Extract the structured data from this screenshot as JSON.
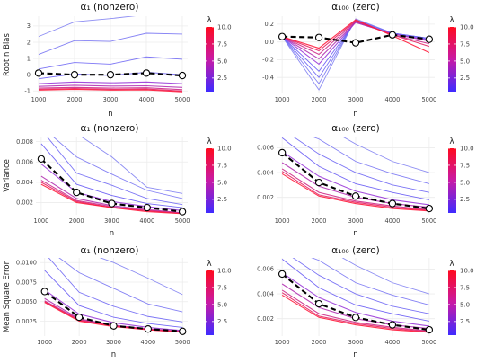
{
  "lambda_title": "λ",
  "legend_ticks": [
    "10.0",
    "7.5",
    "5.0",
    "2.5"
  ],
  "colors": {
    "low": "#3f2bff",
    "high": "#ff0a1e",
    "thin_line": "#7a7cf0",
    "mean_line": "#000000"
  },
  "chart_data": [
    {
      "type": "line",
      "title": "α₁ (nonzero)",
      "xlabel": "n",
      "ylabel": "Root n Bias",
      "x": [
        1000,
        2000,
        3000,
        4000,
        5000
      ],
      "ylim": [
        -1.15,
        3.6
      ],
      "y_ticks": [
        -1,
        0,
        1,
        2,
        3
      ],
      "y_tick_labels": [
        "-1",
        "0",
        "1",
        "2",
        "3"
      ],
      "legend": "λ colour scale",
      "thin_series": [
        [
          2.35,
          3.25,
          3.45,
          3.7,
          3.8
        ],
        [
          1.25,
          2.1,
          2.05,
          2.55,
          2.5
        ],
        [
          0.35,
          0.75,
          0.65,
          1.1,
          0.95
        ],
        [
          -0.25,
          0.05,
          -0.05,
          0.15,
          0.0
        ],
        [
          -0.55,
          -0.45,
          -0.5,
          -0.45,
          -0.55
        ],
        [
          -0.72,
          -0.65,
          -0.7,
          -0.68,
          -0.78
        ],
        [
          -0.82,
          -0.78,
          -0.82,
          -0.8,
          -0.92
        ],
        [
          -0.9,
          -0.85,
          -0.9,
          -0.88,
          -1.0
        ],
        [
          -0.95,
          -0.9,
          -0.95,
          -0.93,
          -1.05
        ]
      ],
      "mean_series": [
        0.1,
        0.0,
        0.0,
        0.1,
        -0.05
      ]
    },
    {
      "type": "line",
      "title": "α₁₀₀ (zero)",
      "xlabel": "n",
      "ylabel": "",
      "x": [
        1000,
        2000,
        3000,
        4000,
        5000
      ],
      "ylim": [
        -0.58,
        0.29
      ],
      "y_ticks": [
        -0.4,
        -0.2,
        0.0,
        0.2
      ],
      "y_tick_labels": [
        "-0.4",
        "-0.2",
        "0.0",
        "0.2"
      ],
      "legend": "λ colour scale",
      "thin_series": [
        [
          0.06,
          -0.54,
          0.26,
          0.1,
          0.04
        ],
        [
          0.06,
          -0.47,
          0.25,
          0.1,
          0.04
        ],
        [
          0.06,
          -0.4,
          0.24,
          0.1,
          0.04
        ],
        [
          0.06,
          -0.33,
          0.23,
          0.09,
          0.03
        ],
        [
          0.06,
          -0.25,
          0.22,
          0.09,
          0.02
        ],
        [
          0.06,
          -0.19,
          0.22,
          0.09,
          0.01
        ],
        [
          0.06,
          -0.14,
          0.23,
          0.08,
          -0.02
        ],
        [
          0.06,
          -0.1,
          0.24,
          0.08,
          -0.05
        ],
        [
          0.06,
          -0.07,
          0.25,
          0.07,
          -0.12
        ]
      ],
      "mean_series": [
        0.06,
        0.05,
        -0.01,
        0.08,
        0.03
      ]
    },
    {
      "type": "line",
      "title": "α₁ (nonzero)",
      "xlabel": "n",
      "ylabel": "Variance",
      "x": [
        1000,
        2000,
        3000,
        4000,
        5000
      ],
      "ylim": [
        0.0008,
        0.0085
      ],
      "y_ticks": [
        0.002,
        0.004,
        0.006,
        0.008
      ],
      "y_tick_labels": [
        "0.002",
        "0.004",
        "0.006",
        "0.008"
      ],
      "legend": "λ colour scale",
      "thin_series": [
        [
          0.0095,
          0.0088,
          0.0065,
          0.0035,
          0.0029
        ],
        [
          0.0095,
          0.0065,
          0.0048,
          0.0032,
          0.0024
        ],
        [
          0.0092,
          0.0049,
          0.0037,
          0.0024,
          0.0018
        ],
        [
          0.0078,
          0.0038,
          0.0027,
          0.0019,
          0.0015
        ],
        [
          0.0058,
          0.003,
          0.0021,
          0.0016,
          0.0012
        ],
        [
          0.0046,
          0.0024,
          0.0017,
          0.0013,
          0.001
        ],
        [
          0.0042,
          0.0022,
          0.0016,
          0.0012,
          0.00095
        ],
        [
          0.004,
          0.0021,
          0.0015,
          0.0012,
          0.00092
        ],
        [
          0.0038,
          0.002,
          0.0015,
          0.0011,
          0.0009
        ]
      ],
      "mean_series": [
        0.0063,
        0.003,
        0.0019,
        0.0015,
        0.0011
      ]
    },
    {
      "type": "line",
      "title": "α₁₀₀ (zero)",
      "xlabel": "n",
      "ylabel": "",
      "x": [
        1000,
        2000,
        3000,
        4000,
        5000
      ],
      "ylim": [
        0.0006,
        0.0069
      ],
      "y_ticks": [
        0.002,
        0.004,
        0.006
      ],
      "y_tick_labels": [
        "0.002",
        "0.004",
        "0.006"
      ],
      "legend": "λ colour scale",
      "thin_series": [
        [
          0.008,
          0.008,
          0.0063,
          0.0049,
          0.004
        ],
        [
          0.0078,
          0.0067,
          0.0049,
          0.0039,
          0.0031
        ],
        [
          0.0075,
          0.0055,
          0.004,
          0.003,
          0.0024
        ],
        [
          0.0068,
          0.0045,
          0.0031,
          0.0024,
          0.0018
        ],
        [
          0.0057,
          0.0037,
          0.0025,
          0.0018,
          0.0014
        ],
        [
          0.0048,
          0.0029,
          0.002,
          0.0015,
          0.0012
        ],
        [
          0.0043,
          0.0024,
          0.0017,
          0.0013,
          0.001
        ],
        [
          0.0041,
          0.0022,
          0.0016,
          0.0012,
          0.00095
        ],
        [
          0.0039,
          0.0021,
          0.0015,
          0.0011,
          0.0009
        ]
      ],
      "mean_series": [
        0.0056,
        0.0032,
        0.0021,
        0.0015,
        0.0011
      ]
    },
    {
      "type": "line",
      "title": "α₁ (nonzero)",
      "xlabel": "n",
      "ylabel": "Mean Square Error",
      "x": [
        1000,
        2000,
        3000,
        4000,
        5000
      ],
      "ylim": [
        0.0006,
        0.0106
      ],
      "y_ticks": [
        0.0025,
        0.005,
        0.0075,
        0.01
      ],
      "y_tick_labels": [
        "0.0025",
        "0.0050",
        "0.0075",
        "0.0100"
      ],
      "legend": "λ colour scale",
      "thin_series": [
        [
          0.012,
          0.0116,
          0.01,
          0.008,
          0.0059
        ],
        [
          0.012,
          0.0087,
          0.0067,
          0.0047,
          0.0037
        ],
        [
          0.0112,
          0.0062,
          0.0044,
          0.0031,
          0.0024
        ],
        [
          0.009,
          0.0045,
          0.003,
          0.0022,
          0.0017
        ],
        [
          0.0065,
          0.0034,
          0.0023,
          0.0017,
          0.0013
        ],
        [
          0.0054,
          0.0028,
          0.002,
          0.0015,
          0.0012
        ],
        [
          0.0051,
          0.0027,
          0.0019,
          0.0015,
          0.0012
        ],
        [
          0.005,
          0.0026,
          0.0019,
          0.0014,
          0.0011
        ],
        [
          0.0049,
          0.0025,
          0.0018,
          0.0014,
          0.0011
        ]
      ],
      "mean_series": [
        0.0063,
        0.003,
        0.0019,
        0.0015,
        0.0012
      ]
    },
    {
      "type": "line",
      "title": "α₁₀₀ (zero)",
      "xlabel": "n",
      "ylabel": "",
      "x": [
        1000,
        2000,
        3000,
        4000,
        5000
      ],
      "ylim": [
        0.0006,
        0.0069
      ],
      "y_ticks": [
        0.002,
        0.004,
        0.006
      ],
      "y_tick_labels": [
        "0.002",
        "0.004",
        "0.006"
      ],
      "legend": "λ colour scale",
      "thin_series": [
        [
          0.008,
          0.008,
          0.0063,
          0.0049,
          0.004
        ],
        [
          0.0078,
          0.0067,
          0.0049,
          0.0039,
          0.0031
        ],
        [
          0.0075,
          0.0055,
          0.004,
          0.003,
          0.0024
        ],
        [
          0.0068,
          0.0045,
          0.0031,
          0.0024,
          0.0018
        ],
        [
          0.0057,
          0.0037,
          0.0025,
          0.0018,
          0.0014
        ],
        [
          0.0048,
          0.0029,
          0.002,
          0.0015,
          0.0012
        ],
        [
          0.0043,
          0.0024,
          0.0017,
          0.0013,
          0.001
        ],
        [
          0.0041,
          0.0022,
          0.0016,
          0.0012,
          0.00095
        ],
        [
          0.0039,
          0.0021,
          0.0015,
          0.0011,
          0.0009
        ]
      ],
      "mean_series": [
        0.0056,
        0.0032,
        0.0021,
        0.0015,
        0.0011
      ]
    }
  ]
}
